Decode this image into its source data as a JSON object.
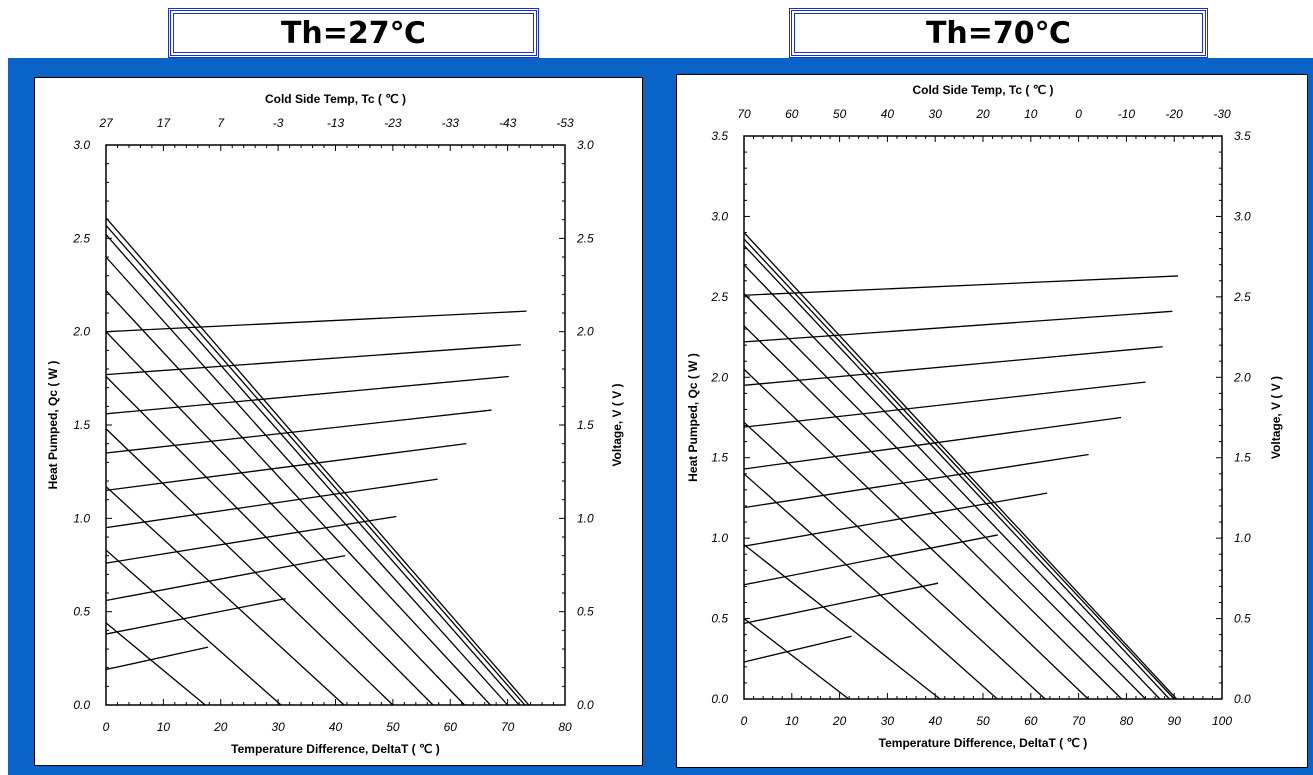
{
  "titles": {
    "left": "Th=27℃",
    "right": "Th=70℃"
  },
  "colors": {
    "background_blue": "#0a64c8",
    "title_border": "#1c2fd0",
    "line": "#000000"
  },
  "chart_data": [
    {
      "type": "line",
      "title": "Th=27℃",
      "xlabel": "Temperature Difference, DeltaT ( ℃ )",
      "ylabel": "Heat Pumped, Qc  ( W )",
      "y2label": "Voltage, V ( V )",
      "x2label": "Cold Side Temp, Tc ( ℃ )",
      "xlim": [
        0,
        80
      ],
      "ylim": [
        0,
        3.0
      ],
      "x_ticks": [
        "0",
        "10",
        "20",
        "30",
        "40",
        "50",
        "60",
        "70",
        "80"
      ],
      "y_ticks": [
        "0.0",
        "0.5",
        "1.0",
        "1.5",
        "2.0",
        "2.5",
        "3.0"
      ],
      "y2_ticks": [
        "0.0",
        "0.5",
        "1.0",
        "1.5",
        "2.0",
        "2.5",
        "3.0"
      ],
      "x2_ticks": [
        "27",
        "17",
        "7",
        "-3",
        "-13",
        "-23",
        "-33",
        "-43",
        "-53"
      ],
      "heat_pumped_lines": [
        {
          "x": [
            0,
            17.3
          ],
          "y": [
            0.44,
            0
          ]
        },
        {
          "x": [
            0,
            30.5
          ],
          "y": [
            0.83,
            0
          ]
        },
        {
          "x": [
            0,
            41.5
          ],
          "y": [
            1.17,
            0
          ]
        },
        {
          "x": [
            0,
            50
          ],
          "y": [
            1.48,
            0
          ]
        },
        {
          "x": [
            0,
            57
          ],
          "y": [
            1.76,
            0
          ]
        },
        {
          "x": [
            0,
            62.5
          ],
          "y": [
            2.0,
            0
          ]
        },
        {
          "x": [
            0,
            67
          ],
          "y": [
            2.22,
            0
          ]
        },
        {
          "x": [
            0,
            70
          ],
          "y": [
            2.4,
            0
          ]
        },
        {
          "x": [
            0,
            72
          ],
          "y": [
            2.52,
            0
          ]
        },
        {
          "x": [
            0,
            73
          ],
          "y": [
            2.57,
            0
          ]
        },
        {
          "x": [
            0,
            73.7
          ],
          "y": [
            2.61,
            0
          ]
        }
      ],
      "voltage_lines": [
        {
          "x": [
            0,
            17.8
          ],
          "y": [
            0.19,
            0.31
          ]
        },
        {
          "x": [
            0,
            31.3
          ],
          "y": [
            0.38,
            0.57
          ]
        },
        {
          "x": [
            0,
            41.7
          ],
          "y": [
            0.56,
            0.8
          ]
        },
        {
          "x": [
            0,
            50.6
          ],
          "y": [
            0.76,
            1.01
          ]
        },
        {
          "x": [
            0,
            57.8
          ],
          "y": [
            0.95,
            1.21
          ]
        },
        {
          "x": [
            0,
            62.8
          ],
          "y": [
            1.15,
            1.4
          ]
        },
        {
          "x": [
            0,
            67.2
          ],
          "y": [
            1.35,
            1.58
          ]
        },
        {
          "x": [
            0,
            70.2
          ],
          "y": [
            1.56,
            1.76
          ]
        },
        {
          "x": [
            0,
            72.3
          ],
          "y": [
            1.77,
            1.93
          ]
        },
        {
          "x": [
            0,
            73.3
          ],
          "y": [
            2.0,
            2.11
          ]
        }
      ]
    },
    {
      "type": "line",
      "title": "Th=70℃",
      "xlabel": "Temperature Difference, DeltaT ( ℃ )",
      "ylabel": "Heat Pumped, Qc  ( W )",
      "y2label": "Voltage, V ( V )",
      "x2label": "Cold Side Temp, Tc ( ℃ )",
      "xlim": [
        0,
        100
      ],
      "ylim": [
        0,
        3.5
      ],
      "x_ticks": [
        "0",
        "10",
        "20",
        "30",
        "40",
        "50",
        "60",
        "70",
        "80",
        "90",
        "100"
      ],
      "y_ticks": [
        "0.0",
        "0.5",
        "1.0",
        "1.5",
        "2.0",
        "2.5",
        "3.0",
        "3.5"
      ],
      "y2_ticks": [
        "0.0",
        "0.5",
        "1.0",
        "1.5",
        "2.0",
        "2.5",
        "3.0",
        "3.5"
      ],
      "x2_ticks": [
        "70",
        "60",
        "50",
        "40",
        "30",
        "20",
        "10",
        "0",
        "-10",
        "-20",
        "-30"
      ],
      "heat_pumped_lines": [
        {
          "x": [
            0,
            21.9
          ],
          "y": [
            0.5,
            0
          ]
        },
        {
          "x": [
            0,
            41
          ],
          "y": [
            0.96,
            0
          ]
        },
        {
          "x": [
            0,
            53
          ],
          "y": [
            1.4,
            0
          ]
        },
        {
          "x": [
            0,
            63
          ],
          "y": [
            1.72,
            0
          ]
        },
        {
          "x": [
            0,
            72
          ],
          "y": [
            2.05,
            0
          ]
        },
        {
          "x": [
            0,
            79
          ],
          "y": [
            2.32,
            0
          ]
        },
        {
          "x": [
            0,
            84
          ],
          "y": [
            2.52,
            0
          ]
        },
        {
          "x": [
            0,
            87
          ],
          "y": [
            2.7,
            0
          ]
        },
        {
          "x": [
            0,
            89
          ],
          "y": [
            2.82,
            0
          ]
        },
        {
          "x": [
            0,
            90
          ],
          "y": [
            2.86,
            0
          ]
        },
        {
          "x": [
            0,
            90.5
          ],
          "y": [
            2.9,
            0
          ]
        }
      ],
      "voltage_lines": [
        {
          "x": [
            0,
            22.5
          ],
          "y": [
            0.23,
            0.39
          ]
        },
        {
          "x": [
            0,
            40.6
          ],
          "y": [
            0.47,
            0.72
          ]
        },
        {
          "x": [
            0,
            53.1
          ],
          "y": [
            0.71,
            1.02
          ]
        },
        {
          "x": [
            0,
            63.4
          ],
          "y": [
            0.95,
            1.28
          ]
        },
        {
          "x": [
            0,
            72.1
          ],
          "y": [
            1.19,
            1.52
          ]
        },
        {
          "x": [
            0,
            78.9
          ],
          "y": [
            1.43,
            1.75
          ]
        },
        {
          "x": [
            0,
            84
          ],
          "y": [
            1.69,
            1.97
          ]
        },
        {
          "x": [
            0,
            87.6
          ],
          "y": [
            1.95,
            2.19
          ]
        },
        {
          "x": [
            0,
            89.6
          ],
          "y": [
            2.22,
            2.41
          ]
        },
        {
          "x": [
            0,
            90.8
          ],
          "y": [
            2.51,
            2.63
          ]
        }
      ]
    }
  ]
}
